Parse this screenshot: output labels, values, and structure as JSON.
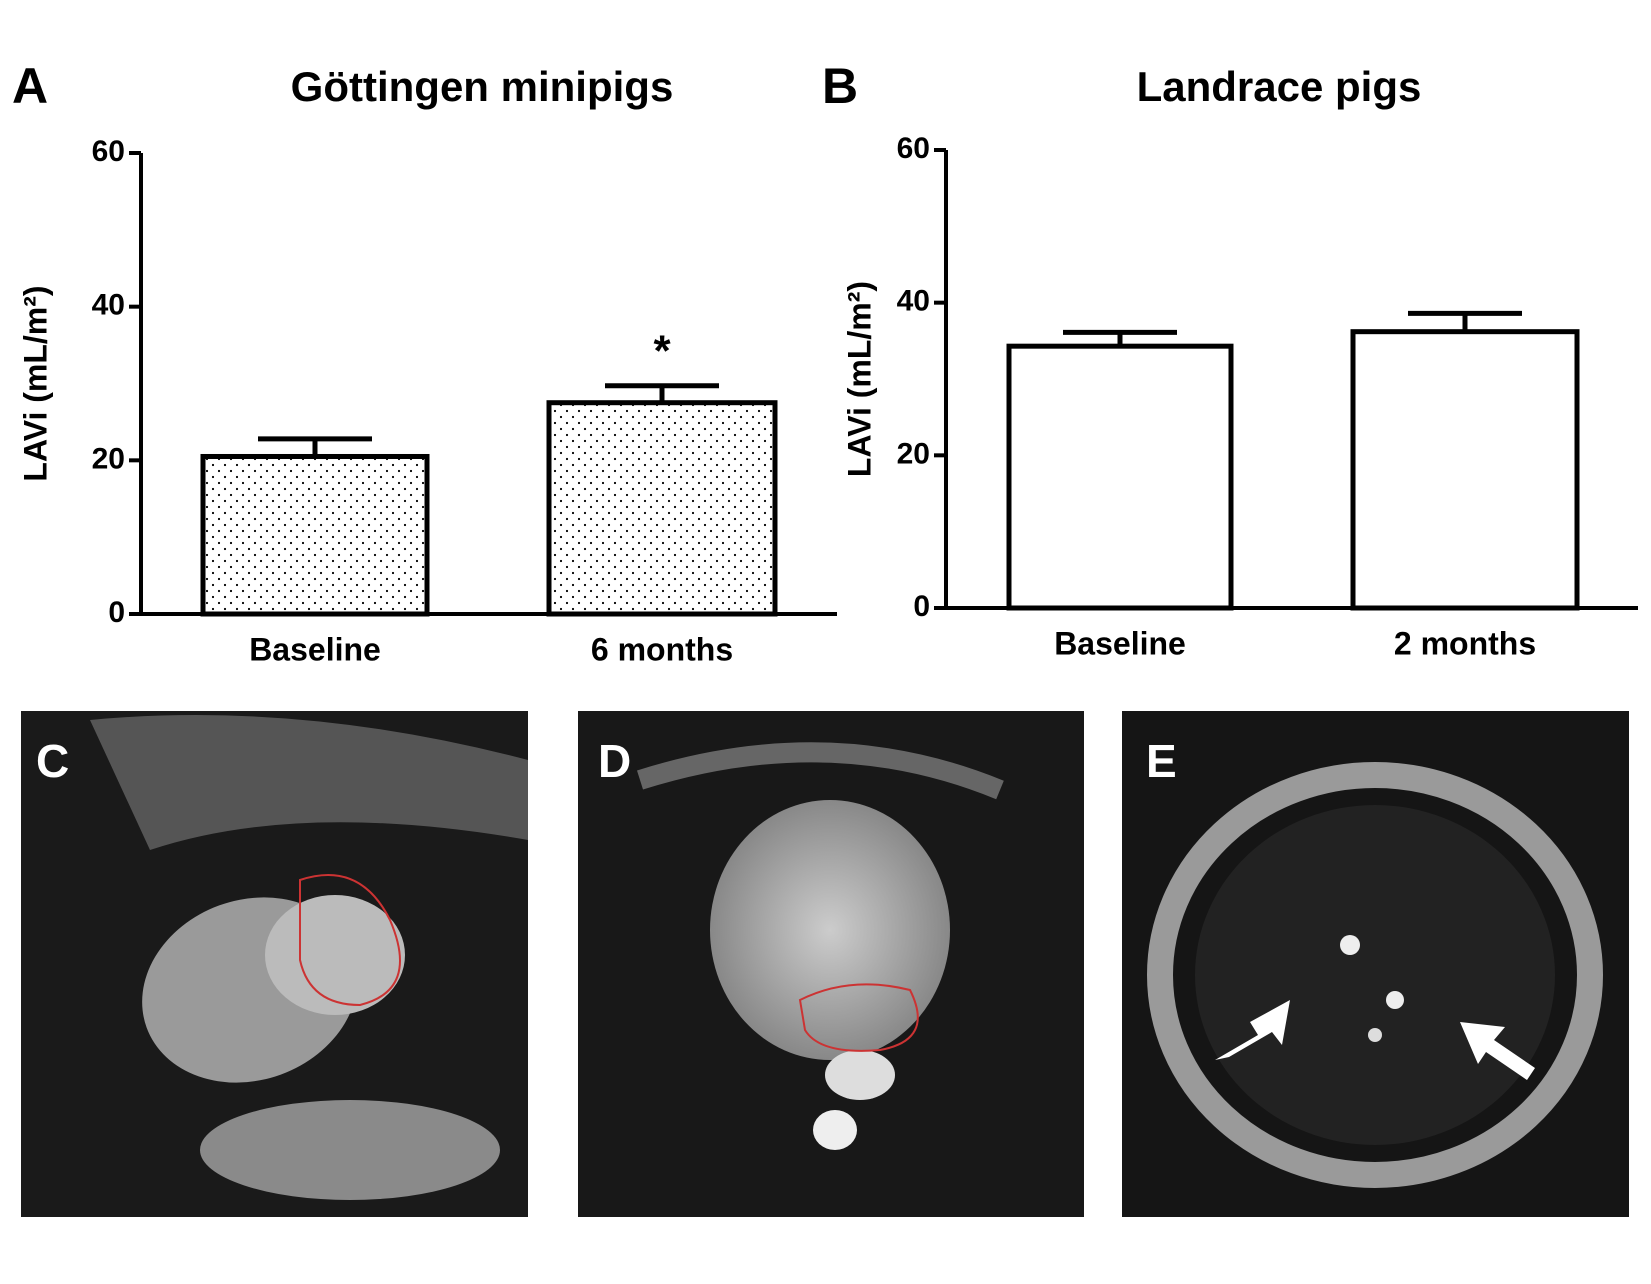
{
  "chart_data": [
    {
      "type": "bar",
      "panel": "A",
      "title": "Göttingen minipigs",
      "y_label": "LAVi (mL/m²)",
      "categories": [
        "Baseline",
        "6 months"
      ],
      "values": [
        20.5,
        27.5
      ],
      "errors": [
        2.3,
        2.2
      ],
      "value_annotations": [
        null,
        "*"
      ],
      "pattern": "dots",
      "color": "#000000",
      "ylim": [
        0,
        60
      ],
      "yticks": [
        0,
        20,
        40,
        60
      ]
    },
    {
      "type": "bar",
      "panel": "B",
      "title": "Landrace pigs",
      "y_label": "LAVi (mL/m²)",
      "categories": [
        "Baseline",
        "2 months"
      ],
      "values": [
        34.3,
        36.2
      ],
      "errors": [
        1.8,
        2.4
      ],
      "value_annotations": [
        null,
        null
      ],
      "pattern": "none",
      "color": "#000000",
      "ylim": [
        0,
        60
      ],
      "yticks": [
        0,
        20,
        40,
        60
      ]
    }
  ],
  "images": [
    {
      "panel": "C"
    },
    {
      "panel": "D"
    },
    {
      "panel": "E"
    }
  ]
}
